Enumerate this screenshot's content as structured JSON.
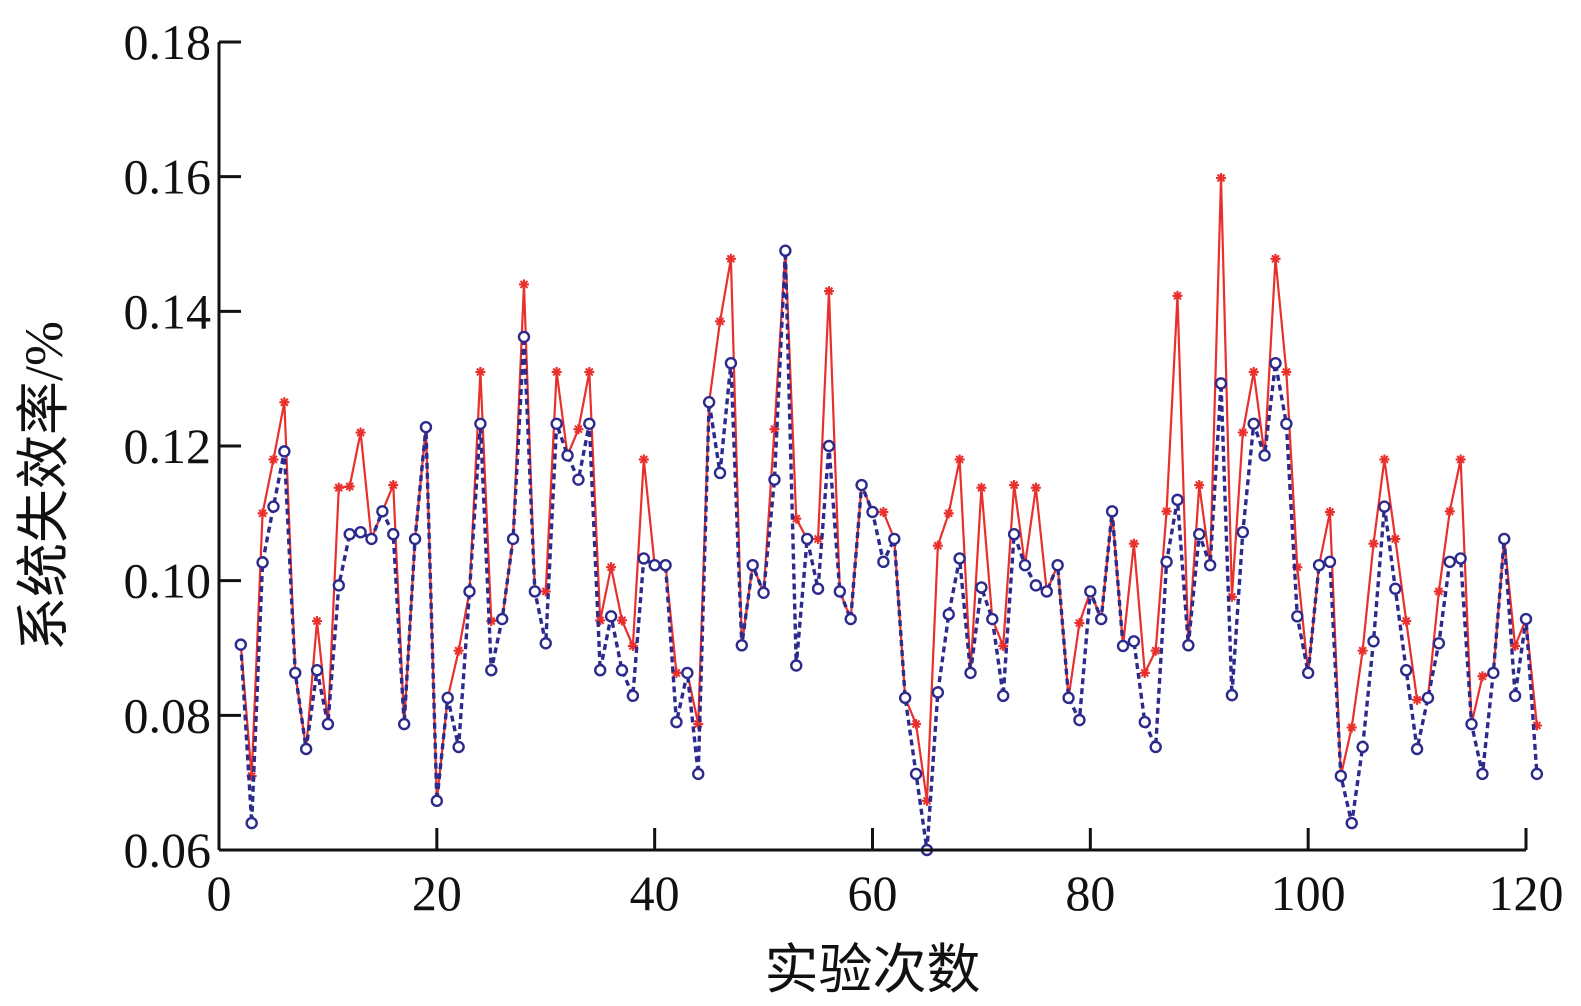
{
  "chart_data": {
    "type": "line",
    "title": "",
    "xlabel": "实验次数",
    "ylabel": "系统失效率/%",
    "xlim": [
      0,
      120
    ],
    "ylim": [
      0.06,
      0.18
    ],
    "xticks": [
      0,
      20,
      40,
      60,
      80,
      100,
      120
    ],
    "yticks": [
      0.06,
      0.08,
      0.1,
      0.12,
      0.14,
      0.16,
      0.18
    ],
    "xtick_labels": [
      "0",
      "20",
      "40",
      "60",
      "80",
      "100",
      "120"
    ],
    "ytick_labels": [
      "0.06",
      "0.08",
      "0.10",
      "0.12",
      "0.14",
      "0.16",
      "0.18"
    ],
    "grid": false,
    "legend": "none",
    "x": [
      2,
      3,
      4,
      5,
      6,
      7,
      8,
      9,
      10,
      11,
      12,
      13,
      14,
      15,
      16,
      17,
      18,
      19,
      20,
      21,
      22,
      23,
      24,
      25,
      26,
      27,
      28,
      29,
      30,
      31,
      32,
      33,
      34,
      35,
      36,
      37,
      38,
      39,
      40,
      41,
      42,
      43,
      44,
      45,
      46,
      47,
      48,
      49,
      50,
      51,
      52,
      53,
      54,
      55,
      56,
      57,
      58,
      59,
      60,
      61,
      62,
      63,
      64,
      65,
      66,
      67,
      68,
      69,
      70,
      71,
      72,
      73,
      74,
      75,
      76,
      77,
      78,
      79,
      80,
      81,
      82,
      83,
      84,
      85,
      86,
      87,
      88,
      89,
      90,
      91,
      92,
      93,
      94,
      95,
      96,
      97,
      98,
      99,
      100,
      101,
      102,
      103,
      104,
      105,
      106,
      107,
      108,
      109,
      110,
      111,
      112,
      113,
      114,
      115,
      116,
      117,
      118,
      119,
      120,
      121
    ],
    "series": [
      {
        "color": "#e8302c",
        "line": "solid",
        "marker": "asterisk",
        "values": [
          0.0905,
          0.071,
          0.11,
          0.118,
          0.1265,
          0.0863,
          0.075,
          0.094,
          0.0787,
          0.1138,
          0.114,
          0.122,
          0.1062,
          0.1103,
          0.1142,
          0.0787,
          0.1062,
          0.1228,
          0.0673,
          0.0826,
          0.0896,
          0.0984,
          0.131,
          0.094,
          0.0943,
          0.1062,
          0.144,
          0.0984,
          0.0984,
          0.131,
          0.1186,
          0.1225,
          0.131,
          0.0941,
          0.102,
          0.0941,
          0.0903,
          0.118,
          0.1023,
          0.1023,
          0.0863,
          0.0863,
          0.0787,
          0.1265,
          0.1385,
          0.1478,
          0.0904,
          0.1023,
          0.0982,
          0.1225,
          0.149,
          0.1092,
          0.1062,
          0.1062,
          0.143,
          0.0984,
          0.0943,
          0.1142,
          0.1102,
          0.1102,
          0.1062,
          0.0826,
          0.0787,
          0.0673,
          0.1052,
          0.11,
          0.118,
          0.0863,
          0.1138,
          0.0943,
          0.0903,
          0.1142,
          0.1023,
          0.1138,
          0.0984,
          0.1023,
          0.0826,
          0.0937,
          0.0984,
          0.0943,
          0.1103,
          0.0903,
          0.1055,
          0.0863,
          0.0896,
          0.1103,
          0.1423,
          0.0904,
          0.1142,
          0.1023,
          0.1598,
          0.0976,
          0.122,
          0.131,
          0.1186,
          0.1478,
          0.131,
          0.102,
          0.0863,
          0.1023,
          0.1102,
          0.071,
          0.0782,
          0.0896,
          0.1055,
          0.118,
          0.1062,
          0.094,
          0.0823,
          0.0826,
          0.0984,
          0.1103,
          0.118,
          0.0787,
          0.0858,
          0.0863,
          0.1062,
          0.0903,
          0.0943,
          0.0785
        ]
      },
      {
        "color": "#2c2a8c",
        "line": "dashed",
        "marker": "circle",
        "values": [
          0.0905,
          0.064,
          0.1027,
          0.111,
          0.1192,
          0.0863,
          0.075,
          0.0867,
          0.0787,
          0.0993,
          0.1069,
          0.1072,
          0.1062,
          0.1103,
          0.1069,
          0.0787,
          0.1062,
          0.1228,
          0.0673,
          0.0826,
          0.0753,
          0.0984,
          0.1233,
          0.0867,
          0.0943,
          0.1062,
          0.1362,
          0.0984,
          0.0907,
          0.1233,
          0.1186,
          0.115,
          0.1233,
          0.0867,
          0.0947,
          0.0867,
          0.0829,
          0.1033,
          0.1023,
          0.1023,
          0.079,
          0.0863,
          0.0713,
          0.1265,
          0.116,
          0.1323,
          0.0904,
          0.1023,
          0.0982,
          0.115,
          0.149,
          0.0874,
          0.1062,
          0.0988,
          0.12,
          0.0984,
          0.0943,
          0.1142,
          0.1102,
          0.1028,
          0.1062,
          0.0826,
          0.0713,
          0.06,
          0.0834,
          0.095,
          0.1033,
          0.0863,
          0.099,
          0.0943,
          0.0829,
          0.1069,
          0.1023,
          0.0993,
          0.0984,
          0.1023,
          0.0826,
          0.0793,
          0.0984,
          0.0943,
          0.1103,
          0.0903,
          0.091,
          0.079,
          0.0753,
          0.1028,
          0.112,
          0.0904,
          0.1069,
          0.1023,
          0.1293,
          0.083,
          0.1072,
          0.1233,
          0.1186,
          0.1323,
          0.1233,
          0.0947,
          0.0863,
          0.1023,
          0.1028,
          0.071,
          0.064,
          0.0753,
          0.091,
          0.111,
          0.0988,
          0.0867,
          0.075,
          0.0826,
          0.0907,
          0.1028,
          0.1033,
          0.0787,
          0.0713,
          0.0863,
          0.1062,
          0.0829,
          0.0943,
          0.0713
        ]
      }
    ]
  }
}
